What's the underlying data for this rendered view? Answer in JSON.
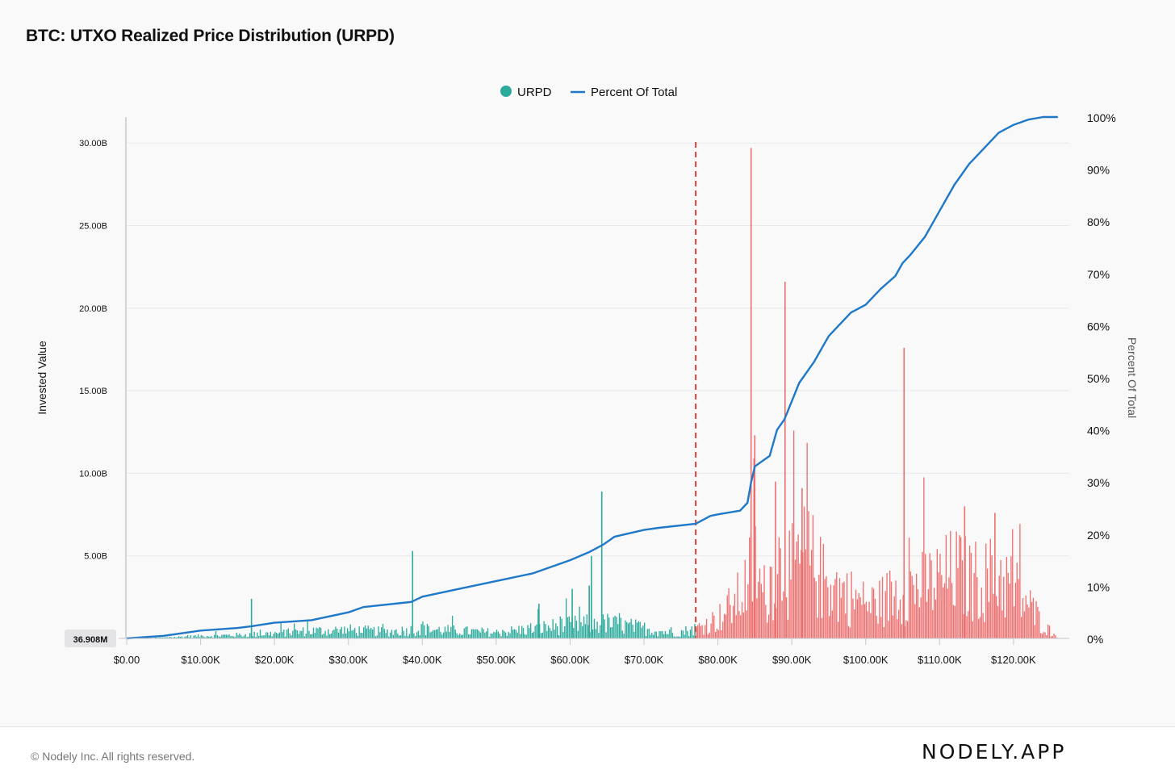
{
  "page": {
    "title": "BTC: UTXO Realized Price Distribution (URPD)",
    "footer_copyright": "© Nodely Inc. All rights reserved.",
    "brand": "NODELY.APP"
  },
  "colors": {
    "urpd_below": "#2aab9c",
    "urpd_above": "#ef6f6f",
    "percent_line": "#1f78c8",
    "current_price_marker": "#e0423b",
    "grid": "#e9e9ec"
  },
  "chart_data": {
    "type": "bar",
    "title": "BTC: UTXO Realized Price Distribution (URPD)",
    "xlabel": "",
    "ylabel": "Invested Value",
    "y2label": "Percent Of Total",
    "xlim": [
      0,
      127000
    ],
    "ylim": [
      0,
      30500000000
    ],
    "y2lim": [
      0,
      100
    ],
    "x_ticks": [
      0,
      10000,
      20000,
      30000,
      40000,
      50000,
      60000,
      70000,
      80000,
      90000,
      100000,
      110000,
      120000
    ],
    "x_tick_labels": [
      "$0.00",
      "$10.00K",
      "$20.00K",
      "$30.00K",
      "$40.00K",
      "$50.00K",
      "$60.00K",
      "$70.00K",
      "$80.00K",
      "$90.00K",
      "$100.00K",
      "$110.00K",
      "$120.00K"
    ],
    "y_ticks": [
      5000000000,
      10000000000,
      15000000000,
      20000000000,
      25000000000,
      30000000000
    ],
    "y_tick_labels": [
      "5.00B",
      "10.00B",
      "15.00B",
      "20.00B",
      "25.00B",
      "30.00B"
    ],
    "y_min_label": "36.908M",
    "y2_ticks": [
      0,
      10,
      20,
      30,
      40,
      50,
      60,
      70,
      80,
      90,
      100
    ],
    "y2_tick_labels": [
      "0%",
      "10%",
      "20%",
      "30%",
      "40%",
      "50%",
      "60%",
      "70%",
      "80%",
      "90%",
      "100%"
    ],
    "legend": [
      "URPD",
      "Percent Of Total"
    ],
    "legend_position": "top-center",
    "current_price": 77000,
    "bin_width": 200,
    "urpd_series": {
      "name": "URPD",
      "profiles": [
        {
          "x": 0,
          "v": 0.0
        },
        {
          "x": 5000,
          "v": 0.05
        },
        {
          "x": 10000,
          "v": 0.15
        },
        {
          "x": 15000,
          "v": 0.2
        },
        {
          "x": 20000,
          "v": 0.3
        },
        {
          "x": 25000,
          "v": 0.45
        },
        {
          "x": 30000,
          "v": 0.5
        },
        {
          "x": 35000,
          "v": 0.4
        },
        {
          "x": 40000,
          "v": 0.55
        },
        {
          "x": 45000,
          "v": 0.45
        },
        {
          "x": 50000,
          "v": 0.35
        },
        {
          "x": 55000,
          "v": 0.6
        },
        {
          "x": 60000,
          "v": 0.8
        },
        {
          "x": 65000,
          "v": 0.9
        },
        {
          "x": 70000,
          "v": 0.6
        },
        {
          "x": 74000,
          "v": 0.3
        },
        {
          "x": 77000,
          "v": 0.6
        },
        {
          "x": 80000,
          "v": 1.2
        },
        {
          "x": 83000,
          "v": 2.5
        },
        {
          "x": 85000,
          "v": 4.5
        },
        {
          "x": 86000,
          "v": 2.5
        },
        {
          "x": 88000,
          "v": 4.5
        },
        {
          "x": 90000,
          "v": 4.0
        },
        {
          "x": 92000,
          "v": 5.0
        },
        {
          "x": 94000,
          "v": 3.5
        },
        {
          "x": 96000,
          "v": 3.0
        },
        {
          "x": 98000,
          "v": 2.5
        },
        {
          "x": 100000,
          "v": 2.0
        },
        {
          "x": 102000,
          "v": 2.2
        },
        {
          "x": 104000,
          "v": 2.8
        },
        {
          "x": 106000,
          "v": 3.0
        },
        {
          "x": 108000,
          "v": 3.2
        },
        {
          "x": 110000,
          "v": 3.5
        },
        {
          "x": 112000,
          "v": 4.0
        },
        {
          "x": 114000,
          "v": 3.5
        },
        {
          "x": 116000,
          "v": 3.5
        },
        {
          "x": 118000,
          "v": 3.8
        },
        {
          "x": 120000,
          "v": 3.0
        },
        {
          "x": 122000,
          "v": 2.0
        },
        {
          "x": 124000,
          "v": 0.8
        },
        {
          "x": 125500,
          "v": 0.2
        },
        {
          "x": 126000,
          "v": 0.0
        }
      ],
      "profile_unit_billions": true,
      "spikes": [
        {
          "x": 16800,
          "v": 2.4
        },
        {
          "x": 38600,
          "v": 5.3
        },
        {
          "x": 55700,
          "v": 2.1
        },
        {
          "x": 60200,
          "v": 3.0
        },
        {
          "x": 62500,
          "v": 3.2
        },
        {
          "x": 62800,
          "v": 5.0
        },
        {
          "x": 64200,
          "v": 8.9
        },
        {
          "x": 84400,
          "v": 29.7
        },
        {
          "x": 84900,
          "v": 12.3
        },
        {
          "x": 87700,
          "v": 9.5
        },
        {
          "x": 89000,
          "v": 21.6
        },
        {
          "x": 91300,
          "v": 9.1
        },
        {
          "x": 105100,
          "v": 17.6
        },
        {
          "x": 113300,
          "v": 8.0
        },
        {
          "x": 117400,
          "v": 7.6
        }
      ]
    },
    "percent_series": {
      "name": "Percent Of Total",
      "x": [
        0,
        5000,
        10000,
        15000,
        16800,
        20000,
        25000,
        30000,
        32000,
        38500,
        40000,
        45000,
        50000,
        55000,
        60000,
        62500,
        64500,
        66000,
        70000,
        72000,
        77000,
        79000,
        80000,
        83000,
        84000,
        84500,
        85000,
        87000,
        88000,
        89000,
        91000,
        93000,
        95000,
        98000,
        100000,
        102000,
        104000,
        105000,
        106000,
        108000,
        110000,
        112000,
        114000,
        116000,
        118000,
        120000,
        122000,
        124000,
        126000
      ],
      "y": [
        0,
        0.5,
        1.5,
        2.0,
        2.3,
        3.0,
        3.5,
        5.0,
        6.0,
        7.0,
        8.0,
        9.5,
        11.0,
        12.5,
        15.0,
        16.5,
        18.0,
        19.5,
        20.8,
        21.2,
        22.0,
        23.5,
        23.8,
        24.5,
        26.0,
        30.0,
        33.0,
        35.0,
        40.0,
        42.0,
        49.0,
        53.0,
        58.0,
        62.5,
        64.0,
        67.0,
        69.5,
        72.0,
        73.5,
        77.0,
        82.0,
        87.0,
        91.0,
        94.0,
        97.0,
        98.5,
        99.5,
        100,
        100
      ]
    }
  }
}
